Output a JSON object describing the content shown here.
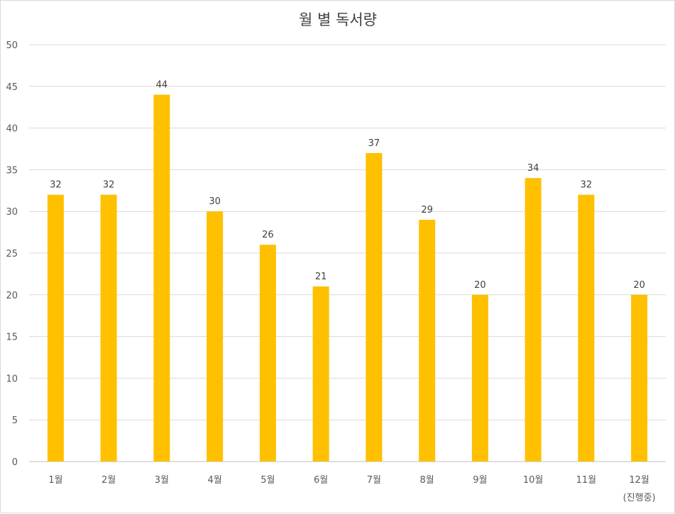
{
  "chart_data": {
    "type": "bar",
    "title": "월 별 독서량",
    "categories": [
      "1월",
      "2월",
      "3월",
      "4월",
      "5월",
      "6월",
      "7월",
      "8월",
      "9월",
      "10월",
      "11월",
      "12월"
    ],
    "category_notes": [
      "",
      "",
      "",
      "",
      "",
      "",
      "",
      "",
      "",
      "",
      "",
      "(진행중)"
    ],
    "values": [
      32,
      32,
      44,
      30,
      26,
      21,
      37,
      29,
      20,
      34,
      32,
      20
    ],
    "data_labels": [
      "32",
      "32",
      "44",
      "30",
      "26",
      "21",
      "37",
      "29",
      "20",
      "34",
      "32",
      "20"
    ],
    "yticks": [
      "0",
      "5",
      "10",
      "15",
      "20",
      "25",
      "30",
      "35",
      "40",
      "45",
      "50"
    ],
    "ylim": [
      0,
      50
    ],
    "xlabel": "",
    "ylabel": "",
    "grid": true,
    "legend": "none",
    "bar_color": "#FFC000",
    "grid_color": "#D9D9D9"
  }
}
